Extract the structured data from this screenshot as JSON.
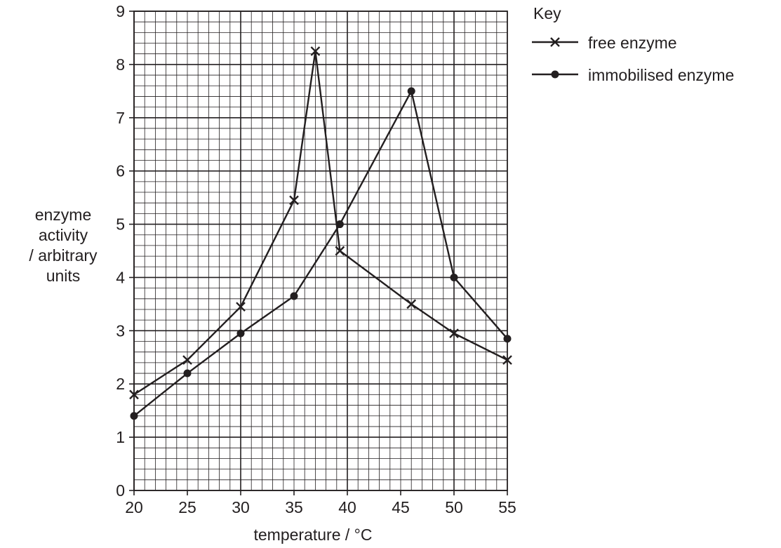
{
  "chart_data": {
    "type": "line",
    "xlabel": "temperature / °C",
    "ylabel": [
      "enzyme",
      "activity",
      "/ arbitrary",
      "units"
    ],
    "xlim": [
      20,
      55
    ],
    "ylim": [
      0,
      9
    ],
    "x_ticks": [
      20,
      25,
      30,
      35,
      40,
      45,
      50,
      55
    ],
    "y_ticks": [
      0,
      1,
      2,
      3,
      4,
      5,
      6,
      7,
      8,
      9
    ],
    "grid": true,
    "legend": {
      "title": "Key",
      "placement": "top-right, outside plot"
    },
    "series": [
      {
        "name": "free enzyme",
        "marker": "cross",
        "points": [
          [
            20,
            1.8
          ],
          [
            25,
            2.45
          ],
          [
            30,
            3.45
          ],
          [
            35,
            5.45
          ],
          [
            37,
            8.25
          ],
          [
            39.3,
            4.5
          ],
          [
            46,
            3.5
          ],
          [
            50,
            2.95
          ],
          [
            55,
            2.45
          ]
        ]
      },
      {
        "name": "immobilised enzyme",
        "marker": "dot",
        "points": [
          [
            20,
            1.4
          ],
          [
            25,
            2.2
          ],
          [
            30,
            2.95
          ],
          [
            35,
            3.65
          ],
          [
            39.3,
            5.0
          ],
          [
            46,
            7.5
          ],
          [
            50,
            4.0
          ],
          [
            55,
            2.85
          ]
        ]
      }
    ]
  },
  "colors": {
    "ink": "#231f20",
    "grid": "#231f20"
  }
}
